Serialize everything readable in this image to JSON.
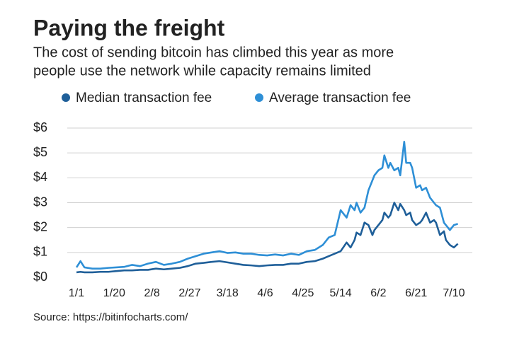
{
  "chart_data": {
    "type": "line",
    "title": "Paying the freight",
    "subtitle": [
      "The cost of sending bitcoin has climbed this year as more",
      "people use the network while capacity remains limited"
    ],
    "source": "Source: https://bitinfocharts.com/",
    "x": [
      0,
      2,
      4,
      8,
      12,
      16,
      20,
      24,
      28,
      32,
      36,
      40,
      44,
      48,
      52,
      56,
      60,
      64,
      68,
      72,
      76,
      80,
      84,
      88,
      92,
      96,
      100,
      104,
      108,
      112,
      116,
      120,
      124,
      127,
      130,
      133,
      136,
      138,
      140,
      141,
      143,
      145,
      147,
      149,
      150,
      152,
      154,
      155,
      157,
      158,
      160,
      162,
      163,
      165,
      166,
      168,
      169,
      171,
      173,
      174,
      176,
      178,
      180,
      181,
      183,
      185,
      186,
      188,
      190,
      192
    ],
    "series": [
      {
        "name": "Median transaction fee",
        "color": "#1f5f99",
        "values": [
          0.2,
          0.22,
          0.2,
          0.2,
          0.22,
          0.22,
          0.25,
          0.28,
          0.28,
          0.3,
          0.3,
          0.35,
          0.32,
          0.35,
          0.38,
          0.45,
          0.55,
          0.58,
          0.62,
          0.65,
          0.6,
          0.55,
          0.5,
          0.48,
          0.45,
          0.48,
          0.5,
          0.5,
          0.55,
          0.55,
          0.62,
          0.65,
          0.75,
          0.85,
          0.95,
          1.05,
          1.4,
          1.2,
          1.5,
          1.8,
          1.7,
          2.2,
          2.1,
          1.7,
          1.9,
          2.1,
          2.3,
          2.6,
          2.4,
          2.5,
          3.0,
          2.7,
          2.95,
          2.7,
          2.5,
          2.6,
          2.3,
          2.1,
          2.2,
          2.3,
          2.6,
          2.2,
          2.3,
          2.2,
          1.7,
          1.85,
          1.5,
          1.3,
          1.2,
          1.35
        ]
      },
      {
        "name": "Average transaction fee",
        "color": "#2e8fd6",
        "values": [
          0.4,
          0.65,
          0.4,
          0.35,
          0.35,
          0.38,
          0.4,
          0.42,
          0.5,
          0.45,
          0.55,
          0.62,
          0.5,
          0.55,
          0.62,
          0.75,
          0.85,
          0.95,
          1.0,
          1.05,
          0.98,
          1.0,
          0.95,
          0.95,
          0.9,
          0.88,
          0.92,
          0.88,
          0.95,
          0.9,
          1.05,
          1.1,
          1.3,
          1.6,
          1.7,
          2.7,
          2.4,
          2.9,
          2.7,
          3.0,
          2.6,
          2.8,
          3.5,
          3.9,
          4.1,
          4.3,
          4.4,
          4.9,
          4.4,
          4.6,
          4.3,
          4.4,
          4.1,
          5.45,
          4.6,
          4.6,
          4.4,
          3.6,
          3.7,
          3.5,
          3.6,
          3.2,
          3.0,
          2.9,
          2.8,
          2.2,
          2.1,
          1.9,
          2.1,
          2.15
        ]
      }
    ],
    "xlim": [
      -4,
      197
    ],
    "xticks": [
      {
        "value": 0,
        "label": "1/1"
      },
      {
        "value": 19,
        "label": "1/20"
      },
      {
        "value": 38,
        "label": "2/8"
      },
      {
        "value": 57,
        "label": "2/27"
      },
      {
        "value": 76,
        "label": "3/18"
      },
      {
        "value": 95,
        "label": "4/6"
      },
      {
        "value": 114,
        "label": "4/25"
      },
      {
        "value": 133,
        "label": "5/14"
      },
      {
        "value": 152,
        "label": "6/2"
      },
      {
        "value": 171,
        "label": "6/21"
      },
      {
        "value": 190,
        "label": "7/10"
      }
    ],
    "ylim": [
      0,
      6
    ],
    "yticks": [
      {
        "value": 0,
        "label": "$0"
      },
      {
        "value": 1,
        "label": "$1"
      },
      {
        "value": 2,
        "label": "$2"
      },
      {
        "value": 3,
        "label": "$3"
      },
      {
        "value": 4,
        "label": "$4"
      },
      {
        "value": 5,
        "label": "$5"
      },
      {
        "value": 6,
        "label": "$6"
      }
    ],
    "grid": true
  }
}
